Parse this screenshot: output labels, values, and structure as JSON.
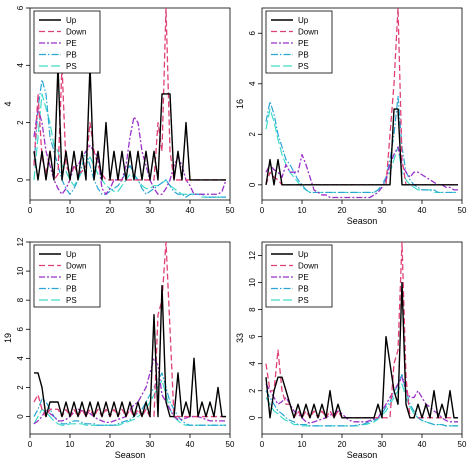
{
  "legend_labels": [
    "Up",
    "Down",
    "PE",
    "PB",
    "PS"
  ],
  "series_colors": {
    "Up": "#000000",
    "Down": "#e0407a",
    "PE": "#9b30c8",
    "PB": "#2aa6d6",
    "PS": "#40dcc8"
  },
  "chart_data": [
    {
      "type": "line",
      "title": "",
      "xlabel": "",
      "ylabel": "4",
      "xlim": [
        0,
        50
      ],
      "ylim": [
        -0.7,
        6
      ],
      "xticks": [
        0,
        10,
        20,
        30,
        40,
        50
      ],
      "yticks": [
        0,
        2,
        4,
        6
      ],
      "legend_position": "top-left",
      "grid": false,
      "x_start": 1,
      "series": [
        {
          "name": "Up",
          "values": [
            1,
            0,
            1,
            0,
            1,
            0,
            4,
            0,
            1,
            0,
            1,
            0,
            1,
            0,
            4,
            0,
            1,
            0,
            2,
            0,
            1,
            0,
            1,
            0,
            1,
            0,
            1,
            0,
            1,
            0,
            1,
            0,
            3,
            3,
            3,
            0,
            1,
            0,
            2,
            0,
            0,
            0,
            0,
            0,
            0,
            0,
            0,
            0,
            0
          ]
        },
        {
          "name": "Down",
          "values": [
            0.5,
            3,
            0.8,
            0.2,
            1,
            0,
            0.2,
            4,
            0.5,
            0.2,
            0.5,
            0.2,
            0.3,
            0.5,
            2,
            1,
            0.5,
            0.2,
            0,
            0,
            0,
            0,
            0,
            0,
            0,
            0,
            0,
            0,
            0,
            0,
            0,
            2,
            1,
            6,
            1,
            0,
            0,
            0,
            0,
            0,
            0,
            0,
            0,
            0,
            0,
            0,
            0,
            0,
            0
          ]
        },
        {
          "name": "PE",
          "values": [
            1.5,
            2.5,
            2,
            1,
            0.5,
            0,
            -0.3,
            -0.5,
            -0.3,
            0,
            0.5,
            0.5,
            0.8,
            1,
            1.2,
            1,
            0.8,
            -0.3,
            -0.5,
            -0.3,
            0,
            0,
            0,
            0.5,
            1.5,
            2.2,
            2,
            1,
            0.5,
            0,
            -0.3,
            -0.5,
            -0.5,
            -0.3,
            0,
            0.5,
            0.8,
            0.5,
            0,
            -0.2,
            -0.5,
            -0.5,
            -0.5,
            -0.5,
            -0.5,
            -0.5,
            -0.5,
            -0.4,
            0
          ]
        },
        {
          "name": "PB",
          "values": [
            0.5,
            2.5,
            3.5,
            3,
            1.5,
            1,
            0.5,
            0,
            -0.3,
            -0.5,
            -0.3,
            0,
            0.5,
            1,
            0.5,
            0,
            -0.3,
            -0.5,
            -0.5,
            -0.4,
            -0.3,
            -0.2,
            0,
            0.3,
            0.5,
            0.2,
            0,
            -0.3,
            -0.5,
            -0.4,
            -0.3,
            -0.2,
            -0.1,
            0,
            -0.2,
            -0.4,
            -0.5,
            -0.5,
            -0.6,
            -0.5,
            -0.5,
            -0.5,
            -0.5,
            -0.6,
            -0.6,
            -0.6,
            -0.6,
            -0.6,
            -0.6
          ]
        },
        {
          "name": "PS",
          "values": [
            0,
            1.5,
            3,
            2.5,
            2,
            1.2,
            1,
            0.5,
            0.3,
            0,
            -0.2,
            0,
            0.3,
            0.5,
            0.8,
            0.5,
            0.2,
            0,
            -0.2,
            -0.3,
            -0.4,
            -0.4,
            -0.2,
            0,
            0.2,
            0.1,
            0,
            -0.2,
            -0.3,
            -0.3,
            -0.2,
            -0.2,
            -0.1,
            0,
            -0.2,
            -0.3,
            -0.4,
            -0.5,
            -0.5,
            -0.5,
            -0.5,
            -0.5,
            -0.6,
            -0.6,
            -0.6,
            -0.6,
            -0.6,
            -0.6,
            -0.6
          ]
        }
      ]
    },
    {
      "type": "line",
      "title": "",
      "xlabel": "Season",
      "ylabel": "16",
      "xlim": [
        0,
        50
      ],
      "ylim": [
        -0.6,
        7
      ],
      "xticks": [
        0,
        10,
        20,
        30,
        40,
        50
      ],
      "yticks": [
        0,
        2,
        4,
        6
      ],
      "legend_position": "top-left",
      "grid": false,
      "x_start": 1,
      "series": [
        {
          "name": "Up",
          "values": [
            0,
            1,
            0,
            1,
            0,
            0,
            0,
            0,
            0,
            0,
            0,
            0,
            0,
            0,
            0,
            0,
            0,
            0,
            0,
            0,
            0,
            0,
            0,
            0,
            0,
            0,
            0,
            0,
            0,
            0,
            0,
            0,
            3,
            3,
            0,
            0,
            0,
            0,
            0,
            0,
            0,
            0,
            0,
            0,
            0,
            0,
            0,
            0,
            0
          ]
        },
        {
          "name": "Down",
          "values": [
            0,
            0.5,
            0.3,
            0.2,
            0,
            0,
            0,
            0,
            0,
            0,
            0,
            0,
            0,
            0,
            0,
            0,
            0,
            0,
            0,
            0,
            0,
            0,
            0,
            0,
            0,
            0,
            0,
            0,
            0,
            0,
            0,
            2,
            4,
            7,
            1,
            0,
            0,
            0,
            0,
            0,
            0,
            0,
            0,
            0,
            0,
            0,
            0,
            0,
            0
          ]
        },
        {
          "name": "PE",
          "values": [
            0.5,
            0.8,
            0.6,
            0.5,
            0.3,
            0.8,
            0.5,
            0.5,
            0.5,
            1.2,
            0.8,
            0.3,
            -0.2,
            -0.3,
            -0.4,
            -0.4,
            -0.5,
            -0.5,
            -0.5,
            -0.5,
            -0.5,
            -0.5,
            -0.5,
            -0.5,
            -0.5,
            -0.5,
            -0.5,
            -0.4,
            -0.3,
            -0.1,
            0.2,
            0.8,
            1.2,
            1.5,
            0.8,
            0.5,
            0.3,
            0.5,
            0.5,
            0.4,
            0.3,
            0.2,
            0.1,
            0,
            0,
            -0.1,
            -0.1,
            -0.2,
            -0.2
          ]
        },
        {
          "name": "PB",
          "values": [
            2.5,
            3.3,
            2.8,
            2,
            1.5,
            1,
            0.8,
            0.5,
            0.2,
            0,
            -0.2,
            -0.3,
            -0.3,
            -0.3,
            -0.3,
            -0.3,
            -0.3,
            -0.3,
            -0.3,
            -0.3,
            -0.3,
            -0.3,
            -0.3,
            -0.3,
            -0.3,
            -0.3,
            -0.3,
            -0.3,
            -0.2,
            0,
            0.3,
            1,
            2,
            3.5,
            1.5,
            0.5,
            0.2,
            0,
            -0.1,
            -0.2,
            -0.2,
            -0.2,
            -0.2,
            -0.3,
            -0.3,
            -0.3,
            -0.3,
            -0.3,
            -0.3
          ]
        },
        {
          "name": "PS",
          "values": [
            2.2,
            3,
            2.5,
            1.8,
            1.2,
            0.8,
            0.5,
            0.3,
            0.1,
            -0.1,
            -0.2,
            -0.3,
            -0.3,
            -0.3,
            -0.3,
            -0.3,
            -0.3,
            -0.3,
            -0.3,
            -0.3,
            -0.3,
            -0.3,
            -0.3,
            -0.3,
            -0.3,
            -0.3,
            -0.3,
            -0.3,
            -0.2,
            -0.1,
            0.2,
            0.5,
            1,
            1.5,
            0.5,
            0.2,
            0,
            -0.1,
            -0.2,
            -0.2,
            -0.2,
            -0.2,
            -0.3,
            -0.3,
            -0.3,
            -0.3,
            -0.3,
            -0.3,
            -0.3
          ]
        }
      ]
    },
    {
      "type": "line",
      "title": "",
      "xlabel": "Season",
      "ylabel": "19",
      "xlim": [
        0,
        50
      ],
      "ylim": [
        -1.2,
        12
      ],
      "xticks": [
        0,
        10,
        20,
        30,
        40,
        50
      ],
      "yticks": [
        0,
        2,
        4,
        6,
        8,
        10,
        12
      ],
      "legend_position": "top-left",
      "grid": false,
      "x_start": 1,
      "series": [
        {
          "name": "Up",
          "values": [
            3,
            3,
            2,
            0,
            1,
            1,
            1,
            0,
            1,
            0,
            1,
            0,
            1,
            0,
            1,
            0,
            1,
            0,
            1,
            0,
            1,
            0,
            1,
            0,
            1,
            0,
            1,
            0,
            1,
            0,
            7,
            0,
            9,
            1,
            0,
            0,
            3,
            0,
            1,
            0,
            4,
            0,
            1,
            0,
            1,
            0,
            2,
            0,
            0
          ]
        },
        {
          "name": "Down",
          "values": [
            1,
            1.5,
            0.5,
            0,
            0.5,
            0.5,
            0.5,
            0,
            0.5,
            0,
            0.5,
            0,
            0.5,
            0,
            0.5,
            0,
            0.5,
            0,
            0.5,
            0,
            0.5,
            0,
            0.5,
            0,
            0.5,
            0,
            0.5,
            0,
            0.5,
            0,
            0,
            7,
            8,
            12,
            6,
            0,
            0,
            0,
            0,
            0,
            0,
            0,
            0,
            0,
            0,
            0,
            0,
            0,
            0
          ]
        },
        {
          "name": "PE",
          "values": [
            -0.5,
            -0.3,
            0,
            0.5,
            0.2,
            0,
            -0.3,
            -0.3,
            -0.2,
            0,
            0.3,
            0.5,
            0.4,
            0.3,
            0.2,
            0,
            -0.2,
            -0.3,
            -0.4,
            -0.4,
            -0.3,
            -0.2,
            -0.1,
            0,
            0.5,
            0.8,
            1,
            1.5,
            2,
            3,
            4,
            3.5,
            1.5,
            1,
            0.5,
            0,
            -0.2,
            -0.2,
            -0.1,
            0,
            0,
            0,
            -0.1,
            -0.2,
            -0.3,
            -0.3,
            -0.3,
            -0.3,
            -0.3
          ]
        },
        {
          "name": "PB",
          "values": [
            0,
            0.5,
            1.2,
            1,
            0.5,
            0,
            -0.3,
            -0.5,
            -0.5,
            -0.4,
            -0.3,
            -0.3,
            -0.4,
            -0.5,
            -0.5,
            -0.5,
            -0.6,
            -0.6,
            -0.6,
            -0.6,
            -0.6,
            -0.5,
            -0.4,
            -0.3,
            -0.2,
            0,
            0.3,
            0.5,
            1,
            1.5,
            2,
            2.5,
            3,
            2,
            1,
            0.5,
            0,
            -0.3,
            -0.5,
            -0.6,
            -0.6,
            -0.6,
            -0.6,
            -0.6,
            -0.6,
            -0.6,
            -0.6,
            -0.6,
            -0.6
          ]
        },
        {
          "name": "PS",
          "values": [
            -0.5,
            0,
            0.5,
            0.3,
            0,
            -0.3,
            -0.5,
            -0.6,
            -0.6,
            -0.5,
            -0.5,
            -0.5,
            -0.5,
            -0.6,
            -0.6,
            -0.6,
            -0.6,
            -0.6,
            -0.6,
            -0.6,
            -0.6,
            -0.6,
            -0.5,
            -0.4,
            -0.3,
            -0.2,
            0,
            0.2,
            0.5,
            1,
            1.5,
            2,
            2.5,
            1.5,
            0.5,
            0,
            -0.3,
            -0.5,
            -0.6,
            -0.6,
            -0.6,
            -0.6,
            -0.6,
            -0.6,
            -0.6,
            -0.6,
            -0.6,
            -0.6,
            -0.6
          ]
        }
      ]
    },
    {
      "type": "line",
      "title": "",
      "xlabel": "Season",
      "ylabel": "33",
      "xlim": [
        0,
        50
      ],
      "ylim": [
        -1.2,
        13
      ],
      "xticks": [
        0,
        10,
        20,
        30,
        40,
        50
      ],
      "yticks": [
        0,
        2,
        4,
        6,
        8,
        10,
        12
      ],
      "legend_position": "top-left",
      "grid": false,
      "x_start": 1,
      "series": [
        {
          "name": "Up",
          "values": [
            3,
            0,
            2,
            3,
            3,
            2,
            1,
            0,
            1,
            0,
            1,
            0,
            1,
            0,
            1,
            0,
            2,
            0,
            1,
            0,
            0,
            0,
            0,
            0,
            0,
            0,
            0,
            0,
            1,
            0,
            6,
            4,
            2,
            1,
            10,
            1,
            0,
            0,
            1,
            0,
            1,
            0,
            2,
            0,
            1,
            0,
            2,
            0,
            0
          ]
        },
        {
          "name": "Down",
          "values": [
            4,
            2,
            2,
            5,
            2,
            1,
            1,
            0,
            0.5,
            0,
            0.5,
            0,
            0.5,
            0,
            0.5,
            0,
            0.5,
            0,
            0.5,
            0,
            0,
            0,
            0,
            0,
            0,
            0,
            0,
            0,
            0,
            0,
            0,
            0,
            4,
            5,
            13,
            3,
            0,
            0,
            0,
            0,
            0,
            0,
            0,
            0,
            0,
            0,
            0,
            0,
            0
          ]
        },
        {
          "name": "PE",
          "values": [
            2.5,
            2,
            1.5,
            1,
            1.2,
            1.5,
            1,
            0.5,
            0.3,
            0,
            -0.3,
            -0.4,
            -0.3,
            -0.2,
            -0.1,
            0,
            0.2,
            0.3,
            0.5,
            0.3,
            0,
            -0.2,
            -0.3,
            -0.3,
            -0.3,
            -0.3,
            -0.2,
            -0.1,
            0,
            0.5,
            1,
            1.5,
            2,
            2.5,
            3,
            2,
            1.5,
            1.5,
            2,
            1.5,
            1,
            0.8,
            0.5,
            0.3,
            0,
            -0.2,
            -0.3,
            -0.3,
            -0.3
          ]
        },
        {
          "name": "PB",
          "values": [
            2,
            1.5,
            1,
            0.5,
            0.3,
            0,
            -0.2,
            -0.3,
            -0.5,
            -0.5,
            -0.5,
            -0.6,
            -0.6,
            -0.6,
            -0.6,
            -0.6,
            -0.6,
            -0.6,
            -0.6,
            -0.6,
            -0.6,
            -0.6,
            -0.6,
            -0.5,
            -0.5,
            -0.4,
            -0.3,
            -0.2,
            0,
            0.3,
            0.8,
            1.2,
            1.8,
            2.5,
            3.2,
            2,
            1,
            0.5,
            0,
            -0.2,
            -0.3,
            -0.4,
            -0.5,
            -0.5,
            -0.5,
            -0.6,
            -0.6,
            -0.6,
            -0.6
          ]
        },
        {
          "name": "PS",
          "values": [
            1.5,
            1,
            0.5,
            0.3,
            0,
            -0.2,
            -0.3,
            -0.5,
            -0.5,
            -0.6,
            -0.6,
            -0.6,
            -0.6,
            -0.6,
            -0.6,
            -0.6,
            -0.6,
            -0.6,
            -0.6,
            -0.6,
            -0.6,
            -0.6,
            -0.6,
            -0.6,
            -0.5,
            -0.5,
            -0.4,
            -0.3,
            -0.1,
            0.2,
            0.5,
            1,
            1.5,
            2,
            2.5,
            1.5,
            0.8,
            0.3,
            0,
            -0.2,
            -0.3,
            -0.4,
            -0.5,
            -0.5,
            -0.5,
            -0.6,
            -0.6,
            -0.6,
            -0.6
          ]
        }
      ]
    }
  ]
}
